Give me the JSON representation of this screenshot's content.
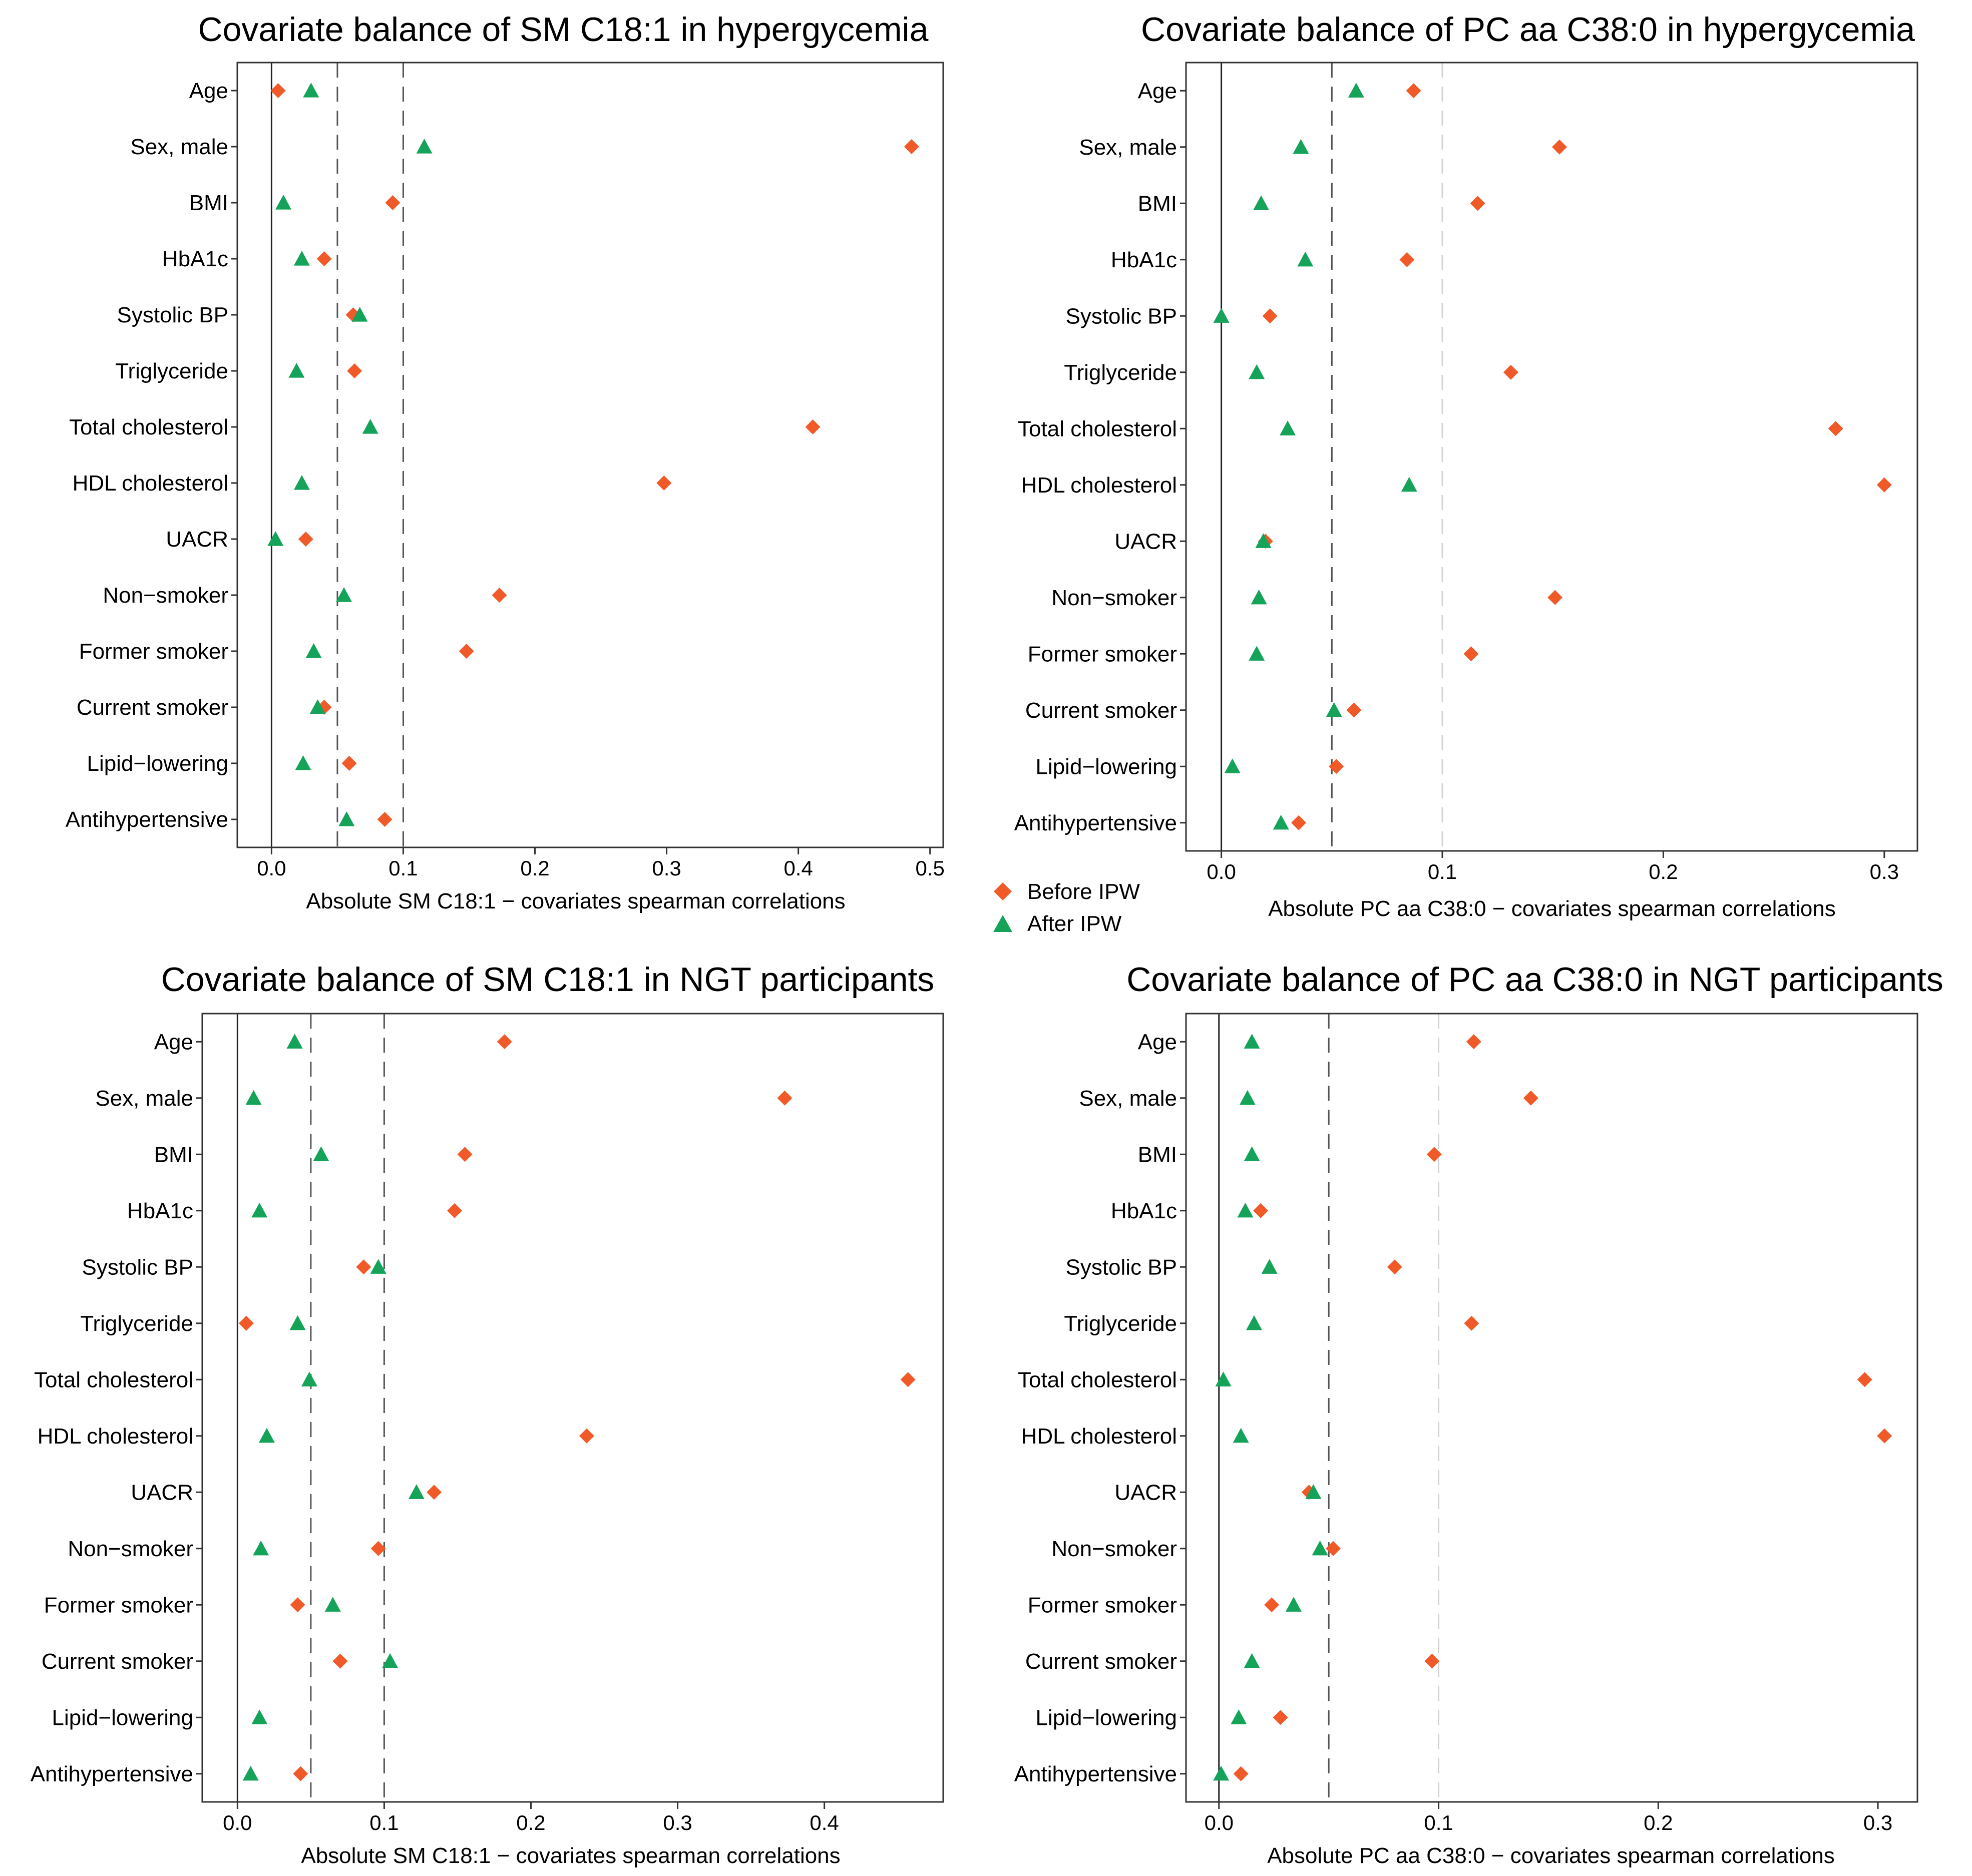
{
  "legend": {
    "before_label": "Before IPW",
    "after_label": "After IPW"
  },
  "colors": {
    "before": "#F05A28",
    "after": "#15A35A",
    "frame": "#333333",
    "zero_line": "#222222"
  },
  "markers": {
    "before_icon": "diamond",
    "after_icon": "triangle"
  },
  "chart_data": [
    {
      "type": "scatter",
      "title": "Covariate balance of SM C18:1 in hypergycemia",
      "xlabel": "Absolute SM C18:1 − covariates spearman correlations",
      "ylabel": "",
      "xlim": [
        -0.026,
        0.51
      ],
      "xticks": [
        0.0,
        0.1,
        0.2,
        0.3,
        0.4,
        0.5
      ],
      "xtick_labels": [
        "0.0",
        "0.1",
        "0.2",
        "0.3",
        "0.4",
        "0.5"
      ],
      "reference_lines": [
        {
          "x": 0.05,
          "color": "#555555"
        },
        {
          "x": 0.1,
          "color": "#555555"
        }
      ],
      "categories": [
        "Age",
        "Sex, male",
        "BMI",
        "HbA1c",
        "Systolic BP",
        "Triglyceride",
        "Total cholesterol",
        "HDL cholesterol",
        "UACR",
        "Non−smoker",
        "Former smoker",
        "Current smoker",
        "Lipid−lowering",
        "Antihypertensive"
      ],
      "series": [
        {
          "name": "Before IPW",
          "values": [
            0.005,
            0.486,
            0.092,
            0.04,
            0.062,
            0.063,
            0.411,
            0.298,
            0.026,
            0.173,
            0.148,
            0.04,
            0.059,
            0.086
          ]
        },
        {
          "name": "After IPW",
          "values": [
            0.03,
            0.116,
            0.009,
            0.023,
            0.067,
            0.019,
            0.075,
            0.023,
            0.003,
            0.055,
            0.032,
            0.035,
            0.024,
            0.057
          ]
        }
      ]
    },
    {
      "type": "scatter",
      "title": "Covariate balance of PC aa C38:0 in hypergycemia",
      "xlabel": "Absolute PC aa C38:0 − covariates spearman correlations",
      "ylabel": "",
      "xlim": [
        -0.016,
        0.315
      ],
      "xticks": [
        0.0,
        0.1,
        0.2,
        0.3
      ],
      "xtick_labels": [
        "0.0",
        "0.1",
        "0.2",
        "0.3"
      ],
      "reference_lines": [
        {
          "x": 0.05,
          "color": "#555555"
        },
        {
          "x": 0.1,
          "color": "#D3D3D3"
        }
      ],
      "categories": [
        "Age",
        "Sex, male",
        "BMI",
        "HbA1c",
        "Systolic BP",
        "Triglyceride",
        "Total cholesterol",
        "HDL cholesterol",
        "UACR",
        "Non−smoker",
        "Former smoker",
        "Current smoker",
        "Lipid−lowering",
        "Antihypertensive"
      ],
      "series": [
        {
          "name": "Before IPW",
          "values": [
            0.087,
            0.153,
            0.116,
            0.084,
            0.022,
            0.131,
            0.278,
            0.3,
            0.02,
            0.151,
            0.113,
            0.06,
            0.052,
            0.035
          ]
        },
        {
          "name": "After IPW",
          "values": [
            0.061,
            0.036,
            0.018,
            0.038,
            0.0,
            0.016,
            0.03,
            0.085,
            0.019,
            0.017,
            0.016,
            0.051,
            0.005,
            0.027
          ]
        }
      ]
    },
    {
      "type": "scatter",
      "title": "Covariate balance of SM C18:1 in NGT participants",
      "xlabel": "Absolute SM C18:1 − covariates spearman correlations",
      "ylabel": "",
      "xlim": [
        -0.024,
        0.481
      ],
      "xticks": [
        0.0,
        0.1,
        0.2,
        0.3,
        0.4
      ],
      "xtick_labels": [
        "0.0",
        "0.1",
        "0.2",
        "0.3",
        "0.4"
      ],
      "reference_lines": [
        {
          "x": 0.05,
          "color": "#555555"
        },
        {
          "x": 0.1,
          "color": "#555555"
        }
      ],
      "categories": [
        "Age",
        "Sex, male",
        "BMI",
        "HbA1c",
        "Systolic BP",
        "Triglyceride",
        "Total cholesterol",
        "HDL cholesterol",
        "UACR",
        "Non−smoker",
        "Former smoker",
        "Current smoker",
        "Lipid−lowering",
        "Antihypertensive"
      ],
      "series": [
        {
          "name": "Before IPW",
          "values": [
            0.182,
            0.373,
            0.155,
            0.148,
            0.086,
            0.006,
            0.457,
            0.238,
            0.134,
            0.096,
            0.041,
            0.07,
            null,
            0.043
          ]
        },
        {
          "name": "After IPW",
          "values": [
            0.039,
            0.011,
            0.057,
            0.015,
            0.096,
            0.041,
            0.049,
            0.02,
            0.122,
            0.016,
            0.065,
            0.104,
            0.015,
            0.009
          ]
        }
      ]
    },
    {
      "type": "scatter",
      "title": "Covariate balance of PC aa C38:0 in NGT participants",
      "xlabel": "Absolute PC aa C38:0 − covariates spearman correlations",
      "ylabel": "",
      "xlim": [
        -0.015,
        0.318
      ],
      "xticks": [
        0.0,
        0.1,
        0.2,
        0.3
      ],
      "xtick_labels": [
        "0.0",
        "0.1",
        "0.2",
        "0.3"
      ],
      "reference_lines": [
        {
          "x": 0.05,
          "color": "#555555"
        },
        {
          "x": 0.1,
          "color": "#D3D3D3"
        }
      ],
      "categories": [
        "Age",
        "Sex, male",
        "BMI",
        "HbA1c",
        "Systolic BP",
        "Triglyceride",
        "Total cholesterol",
        "HDL cholesterol",
        "UACR",
        "Non−smoker",
        "Former smoker",
        "Current smoker",
        "Lipid−lowering",
        "Antihypertensive"
      ],
      "series": [
        {
          "name": "Before IPW",
          "values": [
            0.116,
            0.142,
            0.098,
            0.019,
            0.08,
            0.115,
            0.294,
            0.303,
            0.041,
            0.052,
            0.024,
            0.097,
            0.028,
            0.01
          ]
        },
        {
          "name": "After IPW",
          "values": [
            0.015,
            0.013,
            0.015,
            0.012,
            0.023,
            0.016,
            0.002,
            0.01,
            0.043,
            0.046,
            0.034,
            0.015,
            0.009,
            0.001
          ]
        }
      ]
    }
  ]
}
